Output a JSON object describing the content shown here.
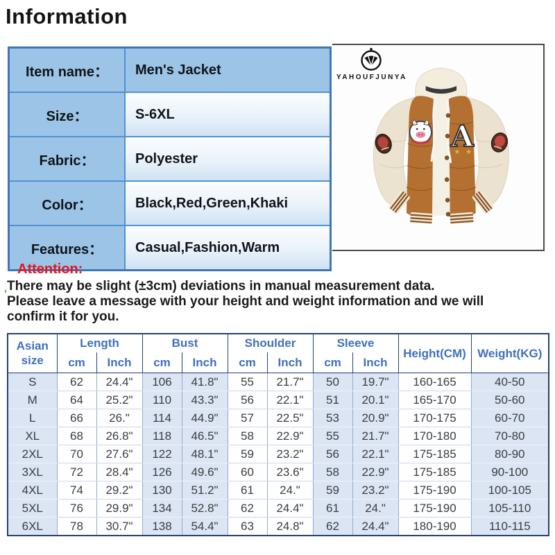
{
  "page": {
    "title": "Information"
  },
  "info_table": {
    "rows": [
      {
        "label": "Item name：",
        "value": "Men's Jacket"
      },
      {
        "label": "Size：",
        "value": "S-6XL"
      },
      {
        "label": "Fabric：",
        "value": "Polyester"
      },
      {
        "label": "Color：",
        "value": "Black,Red,Green,Khaki"
      },
      {
        "label": "Features：",
        "value": "Casual,Fashion,Warm"
      }
    ]
  },
  "product_image": {
    "brand": "YAHOUFJUNYA",
    "chest_letter": "A",
    "description": "men's brown and cream hooded varsity puffer jacket"
  },
  "attention": {
    "heading": "Attention:",
    "tick": "ʼ",
    "lines": [
      "There may be slight (±3cm) deviations in manual measurement data.",
      "Please leave a message with your height and weight information and we will",
      "confirm it for you."
    ]
  },
  "size_chart": {
    "corner": "Asian\nsize",
    "groups": [
      "Length",
      "Bust",
      "Shoulder",
      "Sleeve"
    ],
    "sub": {
      "cm": "cm",
      "inch": "Inch"
    },
    "height": "Height(CM)",
    "weight": "Weight(KG)",
    "tinted_columns": [
      0,
      3,
      4,
      7,
      8,
      10
    ],
    "rows": [
      {
        "size": "S",
        "values": [
          "62",
          "24.4\"",
          "106",
          "41.8\"",
          "55",
          "21.7\"",
          "50",
          "19.7\"",
          "160-165",
          "40-50"
        ]
      },
      {
        "size": "M",
        "values": [
          "64",
          "25.2\"",
          "110",
          "43.3\"",
          "56",
          "22.1\"",
          "51",
          "20.1\"",
          "165-170",
          "50-60"
        ]
      },
      {
        "size": "L",
        "values": [
          "66",
          "26.\"",
          "114",
          "44.9\"",
          "57",
          "22.5\"",
          "53",
          "20.9\"",
          "170-175",
          "60-70"
        ]
      },
      {
        "size": "XL",
        "values": [
          "68",
          "26.8\"",
          "118",
          "46.5\"",
          "58",
          "22.9\"",
          "55",
          "21.7\"",
          "170-180",
          "70-80"
        ]
      },
      {
        "size": "2XL",
        "values": [
          "70",
          "27.6\"",
          "122",
          "48.1\"",
          "59",
          "23.2\"",
          "56",
          "22.1\"",
          "175-185",
          "80-90"
        ]
      },
      {
        "size": "3XL",
        "values": [
          "72",
          "28.4\"",
          "126",
          "49.6\"",
          "60",
          "23.6\"",
          "58",
          "22.9\"",
          "175-185",
          "90-100"
        ]
      },
      {
        "size": "4XL",
        "values": [
          "74",
          "29.2\"",
          "130",
          "51.2\"",
          "61",
          "24.\"",
          "59",
          "23.2\"",
          "175-190",
          "100-105"
        ]
      },
      {
        "size": "5XL",
        "values": [
          "76",
          "29.9\"",
          "134",
          "52.8\"",
          "62",
          "24.4\"",
          "61",
          "24.\"",
          "175-190",
          "105-110"
        ]
      },
      {
        "size": "6XL",
        "values": [
          "78",
          "30.7\"",
          "138",
          "54.4\"",
          "63",
          "24.8\"",
          "62",
          "24.4\"",
          "180-190",
          "110-115"
        ]
      }
    ]
  },
  "colors": {
    "info_cell_blue": "#9cc4e6",
    "info_border_blue": "#4f92d1",
    "size_header_text": "#3f6fbe",
    "size_border_navy": "#24416e",
    "tint_row_blue": "#dbe5f3",
    "attention_red": "#e8151b",
    "jacket_brown": "#b47031",
    "jacket_cream": "#ebe3cf"
  }
}
